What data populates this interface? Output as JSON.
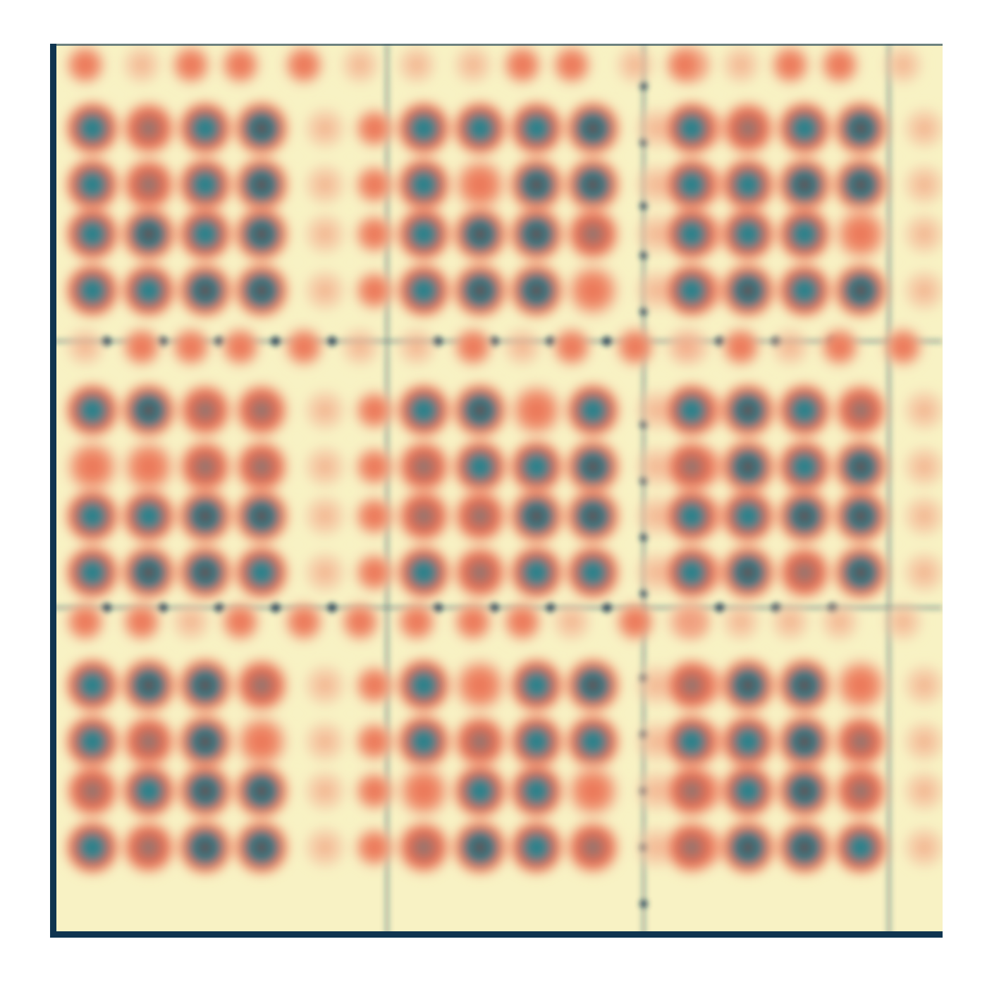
{
  "image": {
    "kind": "abstract-pattern",
    "tiles": {
      "columns": 3,
      "rows": 3
    },
    "blob_grid_per_tile": {
      "columns": 6,
      "rows": 6
    },
    "palette": {
      "page_background": "#ffffff",
      "edge_navy": "#0f3550",
      "cream": "#f8f2c4",
      "salmon": "#ea6f52",
      "crimson": "#8a2a22",
      "teal": "#227c86"
    }
  }
}
